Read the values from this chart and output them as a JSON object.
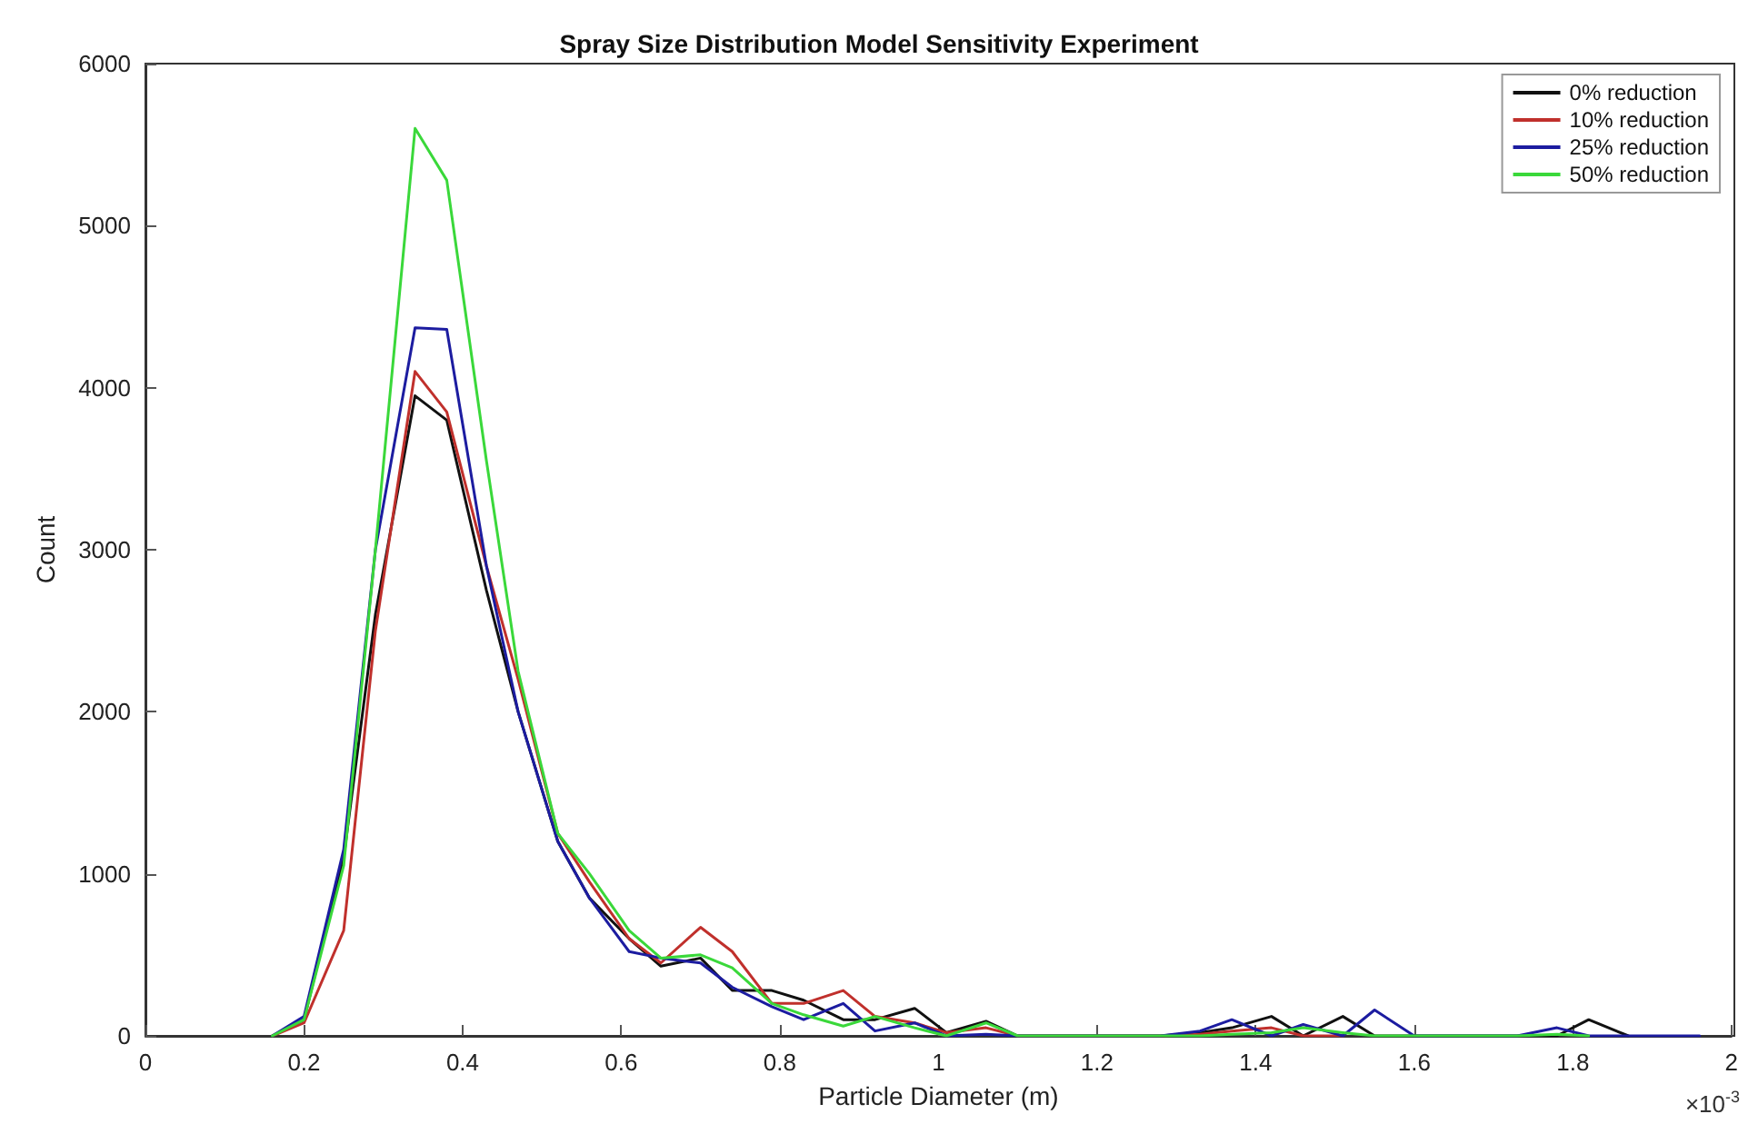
{
  "chart_data": {
    "type": "line",
    "title": "Spray Size Distribution Model Sensitivity Experiment",
    "xlabel": "Particle Diameter (m)",
    "ylabel": "Count",
    "annotations": [
      "×10$^{-3}$"
    ],
    "x": [
      0.16,
      0.2,
      0.25,
      0.29,
      0.34,
      0.38,
      0.43,
      0.47,
      0.52,
      0.56,
      0.61,
      0.65,
      0.7,
      0.74,
      0.79,
      0.83,
      0.88,
      0.92,
      0.97,
      1.01,
      1.06,
      1.1,
      1.15,
      1.19,
      1.24,
      1.28,
      1.33,
      1.37,
      1.42,
      1.46,
      1.51,
      1.55,
      1.6,
      1.64,
      1.69,
      1.73,
      1.78,
      1.82,
      1.87,
      1.91,
      1.96
    ],
    "series": [
      {
        "name": "0% reduction",
        "color": "#111111",
        "values": [
          0,
          100,
          1100,
          2600,
          3950,
          3800,
          2750,
          2000,
          1200,
          850,
          600,
          430,
          480,
          280,
          280,
          220,
          100,
          100,
          170,
          20,
          90,
          0,
          0,
          0,
          0,
          0,
          20,
          50,
          120,
          0,
          120,
          0,
          0,
          0,
          0,
          0,
          0,
          100,
          0,
          null,
          null
        ]
      },
      {
        "name": "10% reduction",
        "color": "#c0302c",
        "values": [
          0,
          80,
          650,
          2500,
          4100,
          3850,
          2900,
          2200,
          1250,
          950,
          600,
          450,
          670,
          520,
          200,
          200,
          280,
          120,
          80,
          20,
          50,
          0,
          0,
          0,
          0,
          0,
          10,
          30,
          50,
          0,
          0,
          null,
          null,
          null,
          null,
          null,
          null,
          null,
          null,
          null,
          null
        ]
      },
      {
        "name": "25% reduction",
        "color": "#1c1ca0",
        "values": [
          0,
          120,
          1150,
          3000,
          4370,
          4360,
          2900,
          2000,
          1200,
          850,
          520,
          480,
          450,
          300,
          180,
          100,
          200,
          30,
          80,
          0,
          10,
          0,
          0,
          0,
          0,
          0,
          30,
          100,
          0,
          70,
          0,
          160,
          0,
          0,
          0,
          0,
          50,
          0,
          0,
          0,
          0
        ]
      },
      {
        "name": "50% reduction",
        "color": "#3ad83a",
        "values": [
          0,
          100,
          1050,
          3000,
          5600,
          5280,
          3550,
          2250,
          1250,
          1000,
          650,
          480,
          500,
          420,
          200,
          130,
          60,
          120,
          50,
          0,
          80,
          0,
          0,
          0,
          0,
          0,
          0,
          10,
          20,
          50,
          20,
          0,
          0,
          0,
          0,
          0,
          10,
          0,
          null,
          null,
          null
        ]
      }
    ],
    "xlim": [
      0,
      2
    ],
    "xticks": [
      0,
      0.2,
      0.4,
      0.6,
      0.8,
      1,
      1.2,
      1.4,
      1.6,
      1.8,
      2
    ],
    "ylim": [
      0,
      6000
    ],
    "yticks": [
      0,
      1000,
      2000,
      3000,
      4000,
      5000,
      6000
    ],
    "grid": false,
    "legend": "top right",
    "marker": "none",
    "line_style": "solid"
  }
}
